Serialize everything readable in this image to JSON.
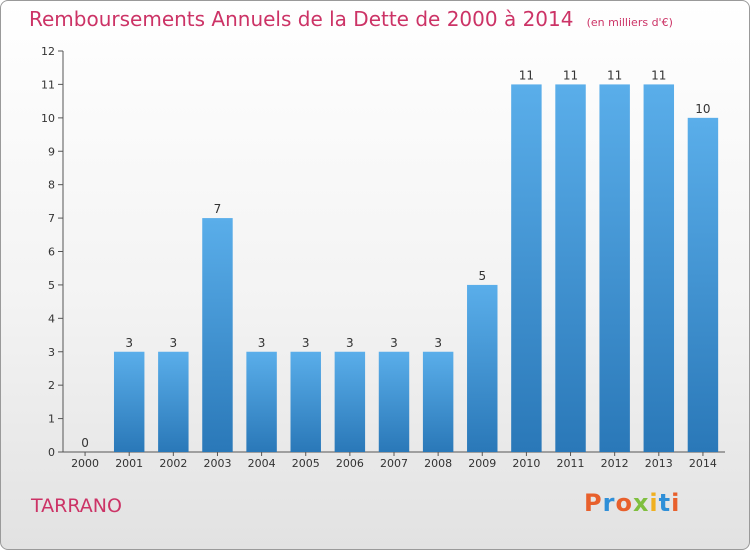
{
  "header": {
    "title": "Remboursements Annuels de la Dette de 2000 à 2014",
    "unit": "(en milliers d'€)"
  },
  "footer": {
    "commune": "TARRANO",
    "logo": "Proxiti"
  },
  "colors": {
    "title": "#cc3366",
    "bar_top": "#5aaeea",
    "bar_bottom": "#2a78b8",
    "logo_letters": [
      "#e8602c",
      "#2f8fd8",
      "#e8602c",
      "#7fbf3f",
      "#f0b020",
      "#2f8fd8",
      "#e8602c"
    ]
  },
  "chart_data": {
    "type": "bar",
    "title": "Remboursements Annuels de la Dette de 2000 à 2014",
    "xlabel": "",
    "ylabel": "",
    "categories": [
      "2000",
      "2001",
      "2002",
      "2003",
      "2004",
      "2005",
      "2006",
      "2007",
      "2008",
      "2009",
      "2010",
      "2011",
      "2012",
      "2013",
      "2014"
    ],
    "values": [
      0,
      3,
      3,
      7,
      3,
      3,
      3,
      3,
      3,
      5,
      11,
      11,
      11,
      11,
      10
    ],
    "ylim": [
      0,
      12
    ],
    "yticks": [
      0,
      1,
      2,
      3,
      4,
      5,
      6,
      7,
      8,
      9,
      10,
      11,
      12
    ],
    "grid": false,
    "legend": "none"
  }
}
